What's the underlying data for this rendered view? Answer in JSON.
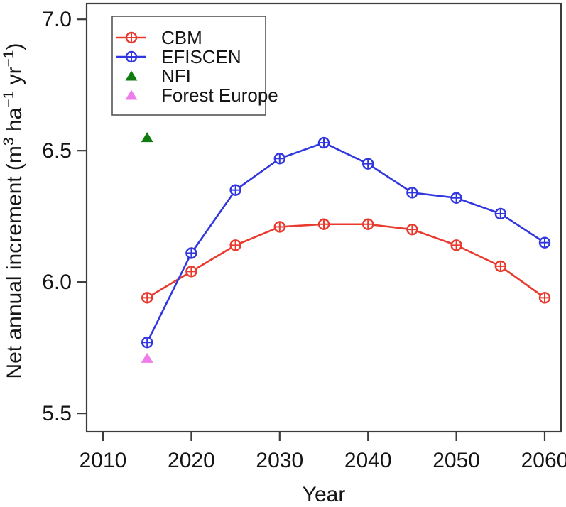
{
  "chart_data": {
    "type": "line",
    "title": "",
    "xlabel": "Year",
    "ylabel": "Net annual increment (m³ ha⁻¹ yr⁻¹)",
    "ylabel_parts": [
      {
        "text": "Net annual increment (m"
      },
      {
        "text": "3",
        "sup": true
      },
      {
        "text": " ha"
      },
      {
        "text": "−1",
        "sup": true
      },
      {
        "text": " yr"
      },
      {
        "text": "−1",
        "sup": true
      },
      {
        "text": ")"
      }
    ],
    "x": [
      2015,
      2020,
      2025,
      2030,
      2035,
      2040,
      2045,
      2050,
      2055,
      2060
    ],
    "series": [
      {
        "name": "CBM",
        "color": "#e93a2e",
        "marker": "circle-plus",
        "line": true,
        "values": [
          5.94,
          6.04,
          6.14,
          6.21,
          6.22,
          6.22,
          6.2,
          6.14,
          6.06,
          5.94
        ]
      },
      {
        "name": "EFISCEN",
        "color": "#3137de",
        "marker": "circle-plus",
        "line": true,
        "values": [
          5.77,
          6.11,
          6.35,
          6.47,
          6.53,
          6.45,
          6.34,
          6.32,
          6.26,
          6.15
        ]
      }
    ],
    "points": [
      {
        "name": "NFI",
        "color": "#107c10",
        "marker": "triangle",
        "x": 2015,
        "y": 6.55
      },
      {
        "name": "Forest Europe",
        "color": "#ee7ce9",
        "marker": "triangle",
        "x": 2015,
        "y": 5.71
      }
    ],
    "x_ticks": [
      {
        "v": 2010,
        "label": "2010"
      },
      {
        "v": 2020,
        "label": "2020"
      },
      {
        "v": 2030,
        "label": "2030"
      },
      {
        "v": 2040,
        "label": "2040"
      },
      {
        "v": 2050,
        "label": "2050"
      },
      {
        "v": 2060,
        "label": "2060"
      }
    ],
    "y_ticks": [
      {
        "v": 5.5,
        "label": "5.5"
      },
      {
        "v": 6.0,
        "label": "6.0"
      },
      {
        "v": 6.5,
        "label": "6.5"
      },
      {
        "v": 7.0,
        "label": "7.0"
      }
    ],
    "xlim": [
      2008.15,
      2061.85
    ],
    "ylim": [
      5.43,
      7.06
    ],
    "grid": false,
    "legend": {
      "position": "top-left",
      "items": [
        {
          "label": "CBM",
          "ref": "CBM"
        },
        {
          "label": "EFISCEN",
          "ref": "EFISCEN"
        },
        {
          "label": "NFI",
          "ref": "NFI"
        },
        {
          "label": "Forest Europe",
          "ref": "Forest Europe"
        }
      ]
    },
    "axis_color": "#3c3c3c",
    "text_color": "#151515",
    "background_color": "#ffffff"
  }
}
